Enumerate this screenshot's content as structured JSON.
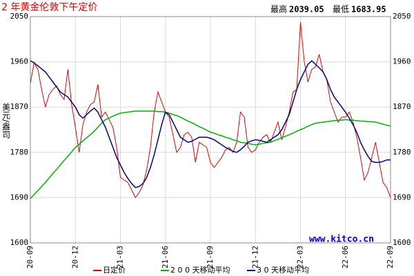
{
  "chart_data": {
    "type": "line",
    "title": "2 年黄金伦敦下午定价",
    "high_label": "最高",
    "high": "2039.05",
    "low_label": "最低",
    "low": "1683.95",
    "y_label": "美元/盎司",
    "watermark": "www.kitco.cn",
    "xlim": [
      0,
      96
    ],
    "xticks": [
      {
        "value": 0,
        "label": "20-09"
      },
      {
        "value": 12,
        "label": "20-12"
      },
      {
        "value": 24,
        "label": "21-03"
      },
      {
        "value": 36,
        "label": "21-06"
      },
      {
        "value": 48,
        "label": "21-09"
      },
      {
        "value": 60,
        "label": "21-12"
      },
      {
        "value": 72,
        "label": "22-03"
      },
      {
        "value": 84,
        "label": "22-06"
      },
      {
        "value": 96,
        "label": "22-09"
      }
    ],
    "ylim": [
      1600,
      2050
    ],
    "yticks": [
      1600,
      1690,
      1780,
      1870,
      1960,
      2050
    ],
    "grid": true,
    "x": [
      0,
      1,
      2,
      3,
      4,
      5,
      6,
      7,
      8,
      9,
      10,
      11,
      12,
      13,
      14,
      15,
      16,
      17,
      18,
      19,
      20,
      21,
      22,
      23,
      24,
      25,
      26,
      27,
      28,
      29,
      30,
      31,
      32,
      33,
      34,
      35,
      36,
      37,
      38,
      39,
      40,
      41,
      42,
      43,
      44,
      45,
      46,
      47,
      48,
      49,
      50,
      51,
      52,
      53,
      54,
      55,
      56,
      57,
      58,
      59,
      60,
      61,
      62,
      63,
      64,
      65,
      66,
      67,
      68,
      69,
      70,
      71,
      72,
      73,
      74,
      75,
      76,
      77,
      78,
      79,
      80,
      81,
      82,
      83,
      84,
      85,
      86,
      87,
      88,
      89,
      90,
      91,
      92,
      93,
      94,
      95,
      96
    ],
    "series": [
      {
        "name": "日定价",
        "color": "#e00000",
        "values": [
          1918,
          1958,
          1945,
          1905,
          1870,
          1895,
          1905,
          1912,
          1895,
          1885,
          1945,
          1875,
          1830,
          1780,
          1835,
          1860,
          1875,
          1880,
          1915,
          1850,
          1860,
          1845,
          1830,
          1790,
          1730,
          1725,
          1720,
          1705,
          1690,
          1700,
          1715,
          1745,
          1790,
          1860,
          1900,
          1880,
          1860,
          1850,
          1815,
          1780,
          1790,
          1815,
          1820,
          1810,
          1760,
          1800,
          1795,
          1790,
          1760,
          1750,
          1760,
          1770,
          1785,
          1790,
          1780,
          1800,
          1860,
          1850,
          1790,
          1780,
          1785,
          1800,
          1810,
          1815,
          1800,
          1820,
          1840,
          1805,
          1830,
          1860,
          1900,
          1905,
          2039,
          1960,
          1920,
          1945,
          1950,
          1975,
          1940,
          1925,
          1880,
          1860,
          1840,
          1850,
          1850,
          1860,
          1840,
          1810,
          1770,
          1725,
          1740,
          1770,
          1800,
          1760,
          1720,
          1710,
          1690
        ]
      },
      {
        "name": "2 0 0 天移动平均",
        "color": "#00b000",
        "values": [
          1688,
          1696,
          1704,
          1712,
          1720,
          1729,
          1738,
          1746,
          1755,
          1764,
          1772,
          1781,
          1790,
          1796,
          1803,
          1809,
          1815,
          1822,
          1830,
          1838,
          1845,
          1848,
          1852,
          1855,
          1858,
          1859,
          1860,
          1861,
          1862,
          1862,
          1862,
          1862,
          1862,
          1862,
          1861,
          1861,
          1860,
          1858,
          1855,
          1853,
          1850,
          1846,
          1842,
          1839,
          1835,
          1831,
          1828,
          1824,
          1820,
          1818,
          1815,
          1813,
          1810,
          1808,
          1805,
          1803,
          1800,
          1799,
          1798,
          1796,
          1795,
          1796,
          1798,
          1799,
          1800,
          1803,
          1806,
          1809,
          1812,
          1815,
          1818,
          1822,
          1825,
          1828,
          1832,
          1835,
          1838,
          1839,
          1840,
          1841,
          1842,
          1843,
          1844,
          1844,
          1845,
          1844,
          1844,
          1843,
          1842,
          1842,
          1841,
          1841,
          1840,
          1838,
          1836,
          1834,
          1832
        ]
      },
      {
        "name": "3 0 天移动平均",
        "color": "#000080",
        "values": [
          1962,
          1958,
          1952,
          1946,
          1940,
          1930,
          1920,
          1910,
          1900,
          1895,
          1890,
          1880,
          1870,
          1855,
          1848,
          1855,
          1862,
          1868,
          1860,
          1845,
          1830,
          1810,
          1790,
          1770,
          1755,
          1740,
          1728,
          1718,
          1710,
          1712,
          1718,
          1730,
          1750,
          1775,
          1805,
          1835,
          1860,
          1855,
          1840,
          1825,
          1810,
          1805,
          1800,
          1802,
          1806,
          1810,
          1810,
          1810,
          1808,
          1805,
          1800,
          1795,
          1790,
          1786,
          1782,
          1780,
          1785,
          1792,
          1800,
          1803,
          1805,
          1804,
          1802,
          1800,
          1805,
          1810,
          1815,
          1825,
          1840,
          1855,
          1880,
          1905,
          1925,
          1940,
          1955,
          1962,
          1955,
          1948,
          1940,
          1925,
          1905,
          1890,
          1880,
          1870,
          1860,
          1848,
          1835,
          1820,
          1800,
          1785,
          1772,
          1762,
          1760,
          1760,
          1762,
          1765,
          1765
        ]
      }
    ]
  }
}
